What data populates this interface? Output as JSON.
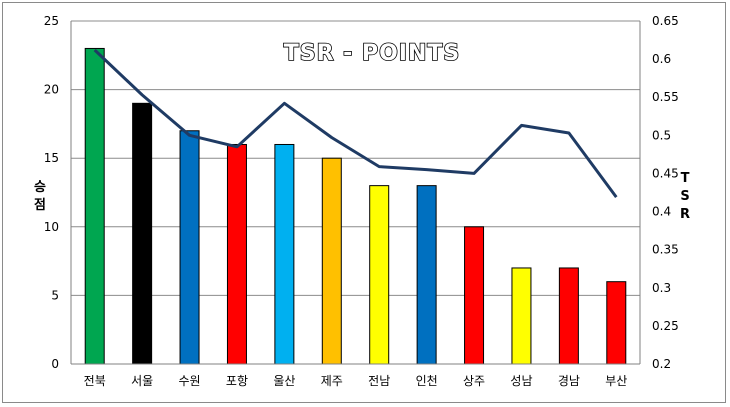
{
  "chart_data": {
    "type": "bar",
    "title": "TSR - POINTS",
    "ylabel": "승점",
    "y2label": "TSR",
    "ylim": [
      0,
      25
    ],
    "y2lim": [
      0.2,
      0.65
    ],
    "yticks": [
      "0",
      "5",
      "10",
      "15",
      "20",
      "25"
    ],
    "y2ticks": [
      "0.2",
      "0.25",
      "0.3",
      "0.35",
      "0.4",
      "0.45",
      "0.5",
      "0.55",
      "0.6",
      "0.65"
    ],
    "grid": true,
    "categories": [
      "전북",
      "서울",
      "수원",
      "포항",
      "울산",
      "제주",
      "전남",
      "인천",
      "상주",
      "성남",
      "경남",
      "부산"
    ],
    "series": [
      {
        "type": "bar",
        "axis": "left",
        "values": [
          23,
          19,
          17,
          16,
          16,
          15,
          13,
          13,
          10,
          7,
          7,
          6
        ],
        "colors": [
          "#00A650",
          "#000000",
          "#0070C0",
          "#FF0000",
          "#00B0F0",
          "#FFC000",
          "#FFFF00",
          "#0070C0",
          "#FF0000",
          "#FFFF00",
          "#FF0000",
          "#FF0000"
        ]
      },
      {
        "type": "line",
        "axis": "right",
        "values": [
          0.612,
          0.553,
          0.5,
          0.485,
          0.542,
          0.497,
          0.459,
          0.455,
          0.45,
          0.513,
          0.503,
          0.419
        ],
        "color": "#1F3B64"
      }
    ]
  }
}
